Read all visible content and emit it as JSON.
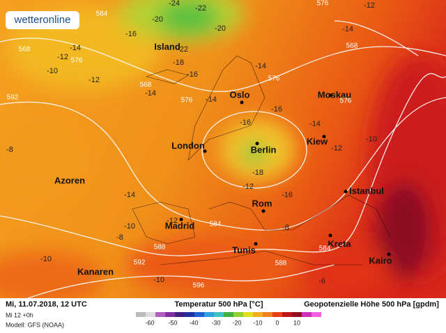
{
  "logo": "wetteronline",
  "cities": [
    "Island",
    "Oslo",
    "Moskau",
    "London",
    "Berlin",
    "Kiew",
    "Azoren",
    "Istanbul",
    "Rom",
    "Madrid",
    "Tunis",
    "Kreta",
    "Kairo",
    "Kanaren"
  ],
  "temperature_labels": [
    -24,
    -22,
    -20,
    -20,
    -16,
    -14,
    -12,
    -10,
    -12,
    -14,
    -18,
    -22,
    -16,
    -14,
    -14,
    -16,
    -16,
    -14,
    -12,
    -14,
    -12,
    -10,
    -8,
    -14,
    -10,
    -8,
    -10,
    -10,
    -12,
    -16,
    -18,
    -8,
    -6,
    -12
  ],
  "height_labels": [
    584,
    568,
    576,
    592,
    568,
    576,
    576,
    576,
    568,
    576,
    584,
    588,
    592,
    596,
    588,
    584
  ],
  "footer": {
    "date": "Mi, 11.07.2018, 12 UTC",
    "run": "Mi 12 +0h",
    "model": "Modell: GFS (NOAA)",
    "temperature_title": "Temperatur 500 hPa [°C]",
    "height_title": "Geopotenzielle Höhe 500 hPa [gpdm]"
  },
  "colorbar_ticks": [
    -60,
    -50,
    -40,
    -30,
    -20,
    -10,
    0,
    10
  ]
}
